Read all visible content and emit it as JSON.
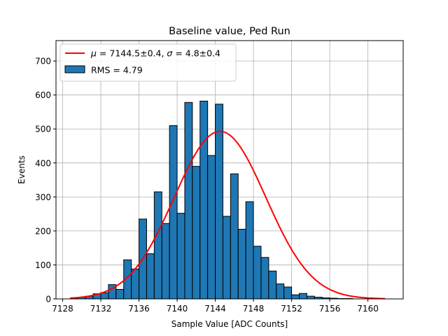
{
  "chart_data": {
    "type": "bar",
    "title": "Baseline value, Ped Run",
    "xlabel": "Sample Value [ADC Counts]",
    "ylabel": "Events",
    "xlim": [
      7127.3,
      7163.7
    ],
    "ylim": [
      0,
      760
    ],
    "xticks": [
      7128,
      7132,
      7136,
      7140,
      7144,
      7148,
      7152,
      7156,
      7160
    ],
    "yticks": [
      0,
      100,
      200,
      300,
      400,
      500,
      600,
      700
    ],
    "grid": true,
    "legend_position": "top-left",
    "bin_width": 0.8,
    "bins_start": [
      7128.8,
      7129.6,
      7130.4,
      7131.2,
      7132.0,
      7132.8,
      7133.6,
      7134.4,
      7135.2,
      7136.0,
      7136.8,
      7137.6,
      7138.4,
      7139.2,
      7140.0,
      7140.8,
      7141.6,
      7142.4,
      7143.2,
      7144.0,
      7144.8,
      7145.6,
      7146.4,
      7147.2,
      7148.0,
      7148.8,
      7149.6,
      7150.4,
      7151.2,
      7152.0,
      7152.8,
      7153.6,
      7154.4,
      7155.2,
      7156.0,
      7156.8,
      7157.6,
      7158.4,
      7159.2
    ],
    "counts": [
      2,
      5,
      8,
      15,
      18,
      42,
      28,
      115,
      88,
      235,
      133,
      315,
      222,
      510,
      252,
      578,
      390,
      582,
      422,
      573,
      243,
      368,
      205,
      286,
      155,
      122,
      82,
      44,
      35,
      12,
      16,
      8,
      5,
      3,
      2,
      1,
      1,
      0,
      0
    ],
    "series": [
      {
        "name": "RMS = 4.79",
        "kind": "histogram",
        "color": "#1f77b4",
        "edgecolor": "#000000"
      },
      {
        "name": "$\\mu = 7144.5\\pm0.4$, $\\sigma = 4.8\\pm0.4$",
        "kind": "gaussian-fit",
        "color": "#ff0000",
        "mu": 7144.5,
        "sigma": 4.8,
        "amplitude": 493,
        "x_range": [
          7128.8,
          7161.8
        ]
      }
    ]
  },
  "legend": {
    "fit_label_parts": [
      "μ",
      " = 7144.5±0.4, ",
      "σ",
      " = 4.8±0.4"
    ],
    "hist_label": "RMS = 4.79"
  }
}
